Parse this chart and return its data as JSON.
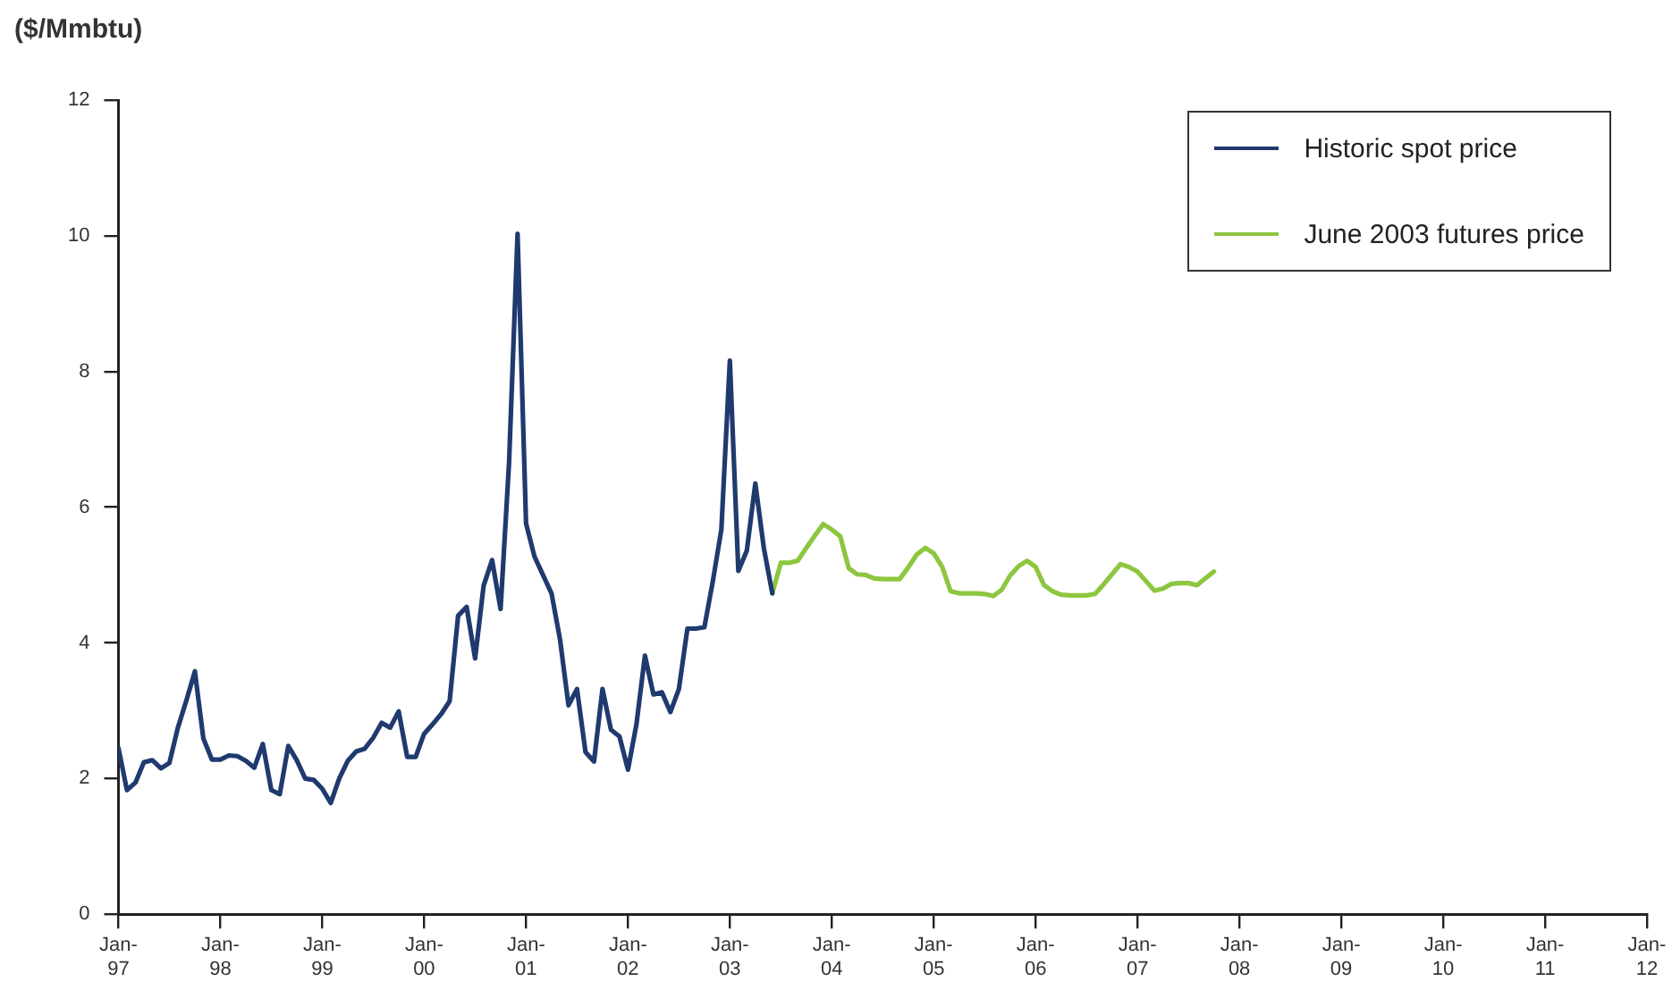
{
  "chart_data": {
    "type": "line",
    "ylabel": "($/Mmbtu)",
    "ylim": [
      0,
      12
    ],
    "yticks": [
      0,
      2,
      4,
      6,
      8,
      10,
      12
    ],
    "xlim": [
      "1997-01",
      "2012-01"
    ],
    "xticks": [
      {
        "value": "1997-01",
        "label": "Jan-97"
      },
      {
        "value": "1998-01",
        "label": "Jan-98"
      },
      {
        "value": "1999-01",
        "label": "Jan-99"
      },
      {
        "value": "2000-01",
        "label": "Jan-00"
      },
      {
        "value": "2001-01",
        "label": "Jan-01"
      },
      {
        "value": "2002-01",
        "label": "Jan-02"
      },
      {
        "value": "2003-01",
        "label": "Jan-03"
      },
      {
        "value": "2004-01",
        "label": "Jan-04"
      },
      {
        "value": "2005-01",
        "label": "Jan-05"
      },
      {
        "value": "2006-01",
        "label": "Jan-06"
      },
      {
        "value": "2007-01",
        "label": "Jan-07"
      },
      {
        "value": "2008-01",
        "label": "Jan-08"
      },
      {
        "value": "2009-01",
        "label": "Jan-09"
      },
      {
        "value": "2010-01",
        "label": "Jan-10"
      },
      {
        "value": "2011-01",
        "label": "Jan-11"
      },
      {
        "value": "2012-01",
        "label": "Jan-12"
      }
    ],
    "legend": "top right",
    "marker": "none",
    "line_style": "solid",
    "series": [
      {
        "name": "Historic spot price",
        "color": "#1f3a6e",
        "x": [
          "1997-01",
          "1997-02",
          "1997-03",
          "1997-04",
          "1997-05",
          "1997-06",
          "1997-07",
          "1997-08",
          "1997-09",
          "1997-10",
          "1997-11",
          "1997-12",
          "1998-01",
          "1998-02",
          "1998-03",
          "1998-04",
          "1998-05",
          "1998-06",
          "1998-07",
          "1998-08",
          "1998-09",
          "1998-10",
          "1998-11",
          "1998-12",
          "1999-01",
          "1999-02",
          "1999-03",
          "1999-04",
          "1999-05",
          "1999-06",
          "1999-07",
          "1999-08",
          "1999-09",
          "1999-10",
          "1999-11",
          "1999-12",
          "2000-01",
          "2000-02",
          "2000-03",
          "2000-04",
          "2000-05",
          "2000-06",
          "2000-07",
          "2000-08",
          "2000-09",
          "2000-10",
          "2000-11",
          "2000-12",
          "2001-01",
          "2001-02",
          "2001-03",
          "2001-04",
          "2001-05",
          "2001-06",
          "2001-07",
          "2001-08",
          "2001-09",
          "2001-10",
          "2001-11",
          "2001-12",
          "2002-01",
          "2002-02",
          "2002-03",
          "2002-04",
          "2002-05",
          "2002-06",
          "2002-07",
          "2002-08",
          "2002-09",
          "2002-10",
          "2002-11",
          "2002-12",
          "2003-01",
          "2003-02",
          "2003-03",
          "2003-04",
          "2003-05",
          "2003-06"
        ],
        "values": [
          2.45,
          1.83,
          1.94,
          2.24,
          2.27,
          2.15,
          2.23,
          2.75,
          3.15,
          3.58,
          2.59,
          2.28,
          2.28,
          2.34,
          2.33,
          2.26,
          2.16,
          2.51,
          1.83,
          1.77,
          2.48,
          2.27,
          2.0,
          1.98,
          1.85,
          1.64,
          2.0,
          2.26,
          2.4,
          2.44,
          2.6,
          2.82,
          2.75,
          2.99,
          2.32,
          2.32,
          2.66,
          2.8,
          2.95,
          3.14,
          4.4,
          4.53,
          3.77,
          4.84,
          5.22,
          4.5,
          6.66,
          10.03,
          5.76,
          5.27,
          5.0,
          4.73,
          4.05,
          3.08,
          3.32,
          2.39,
          2.25,
          3.32,
          2.72,
          2.62,
          2.13,
          2.8,
          3.81,
          3.24,
          3.27,
          2.98,
          3.32,
          4.21,
          4.21,
          4.23,
          4.91,
          5.67,
          8.16,
          5.06,
          5.36,
          6.35,
          5.4,
          4.73
        ]
      },
      {
        "name": "June 2003 futures price",
        "color": "#8dc63f",
        "x": [
          "2003-06",
          "2003-07",
          "2003-08",
          "2003-09",
          "2003-10",
          "2003-11",
          "2003-12",
          "2004-01",
          "2004-02",
          "2004-03",
          "2004-04",
          "2004-05",
          "2004-06",
          "2004-07",
          "2004-08",
          "2004-09",
          "2004-10",
          "2004-11",
          "2004-12",
          "2005-01",
          "2005-02",
          "2005-03",
          "2005-04",
          "2005-05",
          "2005-06",
          "2005-07",
          "2005-08",
          "2005-09",
          "2005-10",
          "2005-11",
          "2005-12",
          "2006-01",
          "2006-02",
          "2006-03",
          "2006-04",
          "2006-05",
          "2006-06",
          "2006-07",
          "2006-08",
          "2006-09",
          "2006-10",
          "2006-11",
          "2006-12",
          "2007-01",
          "2007-02",
          "2007-03",
          "2007-04",
          "2007-05",
          "2007-06",
          "2007-07",
          "2007-08",
          "2007-09",
          "2007-10"
        ],
        "values": [
          4.73,
          5.18,
          5.18,
          5.21,
          5.4,
          5.58,
          5.75,
          5.67,
          5.57,
          5.1,
          5.01,
          5.0,
          4.95,
          4.94,
          4.94,
          4.94,
          5.11,
          5.3,
          5.4,
          5.32,
          5.12,
          4.76,
          4.73,
          4.73,
          4.73,
          4.72,
          4.69,
          4.78,
          4.99,
          5.13,
          5.21,
          5.12,
          4.85,
          4.76,
          4.71,
          4.7,
          4.7,
          4.7,
          4.72,
          4.86,
          5.01,
          5.16,
          5.12,
          5.05,
          4.91,
          4.77,
          4.8,
          4.87,
          4.88,
          4.88,
          4.85,
          4.95,
          5.05
        ]
      }
    ]
  }
}
